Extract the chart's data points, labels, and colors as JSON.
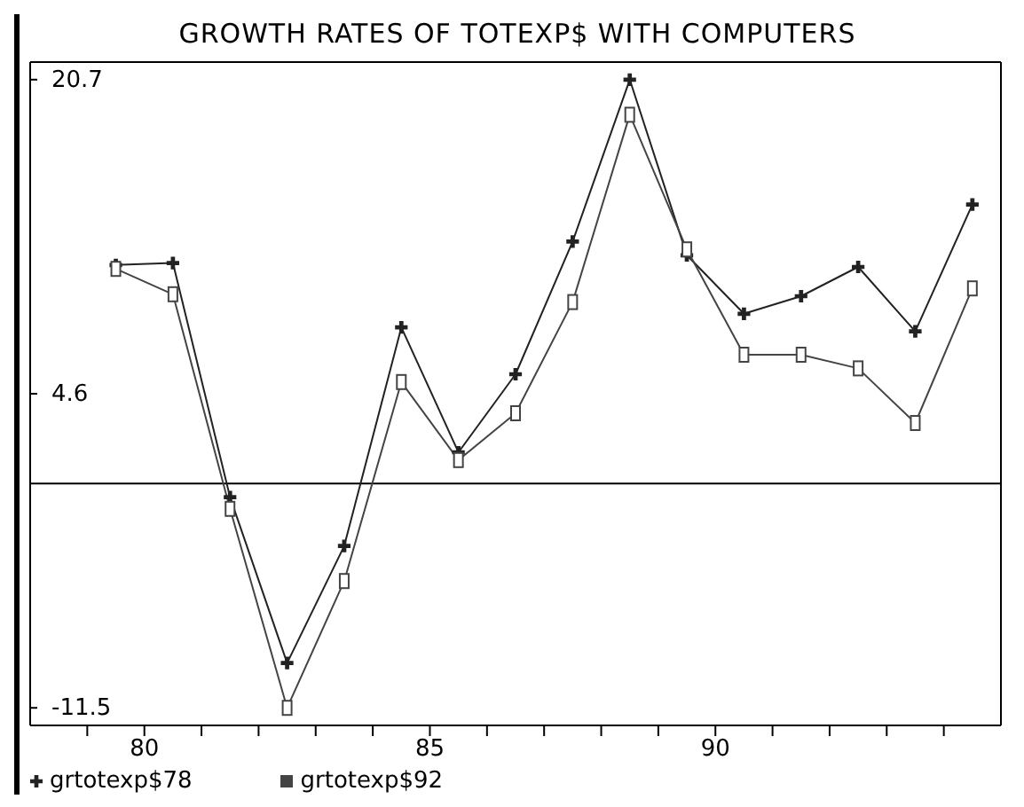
{
  "chart_data": {
    "type": "line",
    "title": "GROWTH RATES OF TOTEXP$ WITH COMPUTERS",
    "x": [
      79.5,
      80.5,
      81.5,
      82.5,
      83.5,
      84.5,
      85.5,
      86.5,
      87.5,
      88.5,
      89.5,
      90.5,
      91.5,
      92.5,
      93.5,
      94.5
    ],
    "series": [
      {
        "name": "grtotexp$78",
        "color": "#222222",
        "marker": "cross",
        "values": [
          11.2,
          11.3,
          -0.7,
          -9.2,
          -3.2,
          8.0,
          1.6,
          5.6,
          12.4,
          20.7,
          11.7,
          8.7,
          9.6,
          11.1,
          7.8,
          14.3
        ]
      },
      {
        "name": "grtotexp$92",
        "color": "#444444",
        "marker": "square",
        "values": [
          11.0,
          9.7,
          -1.3,
          -11.5,
          -5.0,
          5.2,
          1.2,
          3.6,
          9.3,
          18.9,
          12.0,
          6.6,
          6.6,
          5.9,
          3.1,
          10.0
        ]
      }
    ],
    "xlim": [
      78,
      95
    ],
    "xticks": [
      {
        "value": 79,
        "label": null
      },
      80,
      {
        "value": 81,
        "label": null
      },
      {
        "value": 82,
        "label": null
      },
      {
        "value": 83,
        "label": null
      },
      {
        "value": 84,
        "label": null
      },
      85,
      {
        "value": 86,
        "label": null
      },
      {
        "value": 87,
        "label": null
      },
      {
        "value": 88,
        "label": null
      },
      {
        "value": 89,
        "label": null
      },
      90,
      {
        "value": 91,
        "label": null
      },
      {
        "value": 92,
        "label": null
      },
      {
        "value": 93,
        "label": null
      },
      {
        "value": 94,
        "label": null
      }
    ],
    "ylim": [
      -12.4,
      21.6
    ],
    "yticks": [
      -11.5,
      4.6,
      20.7
    ],
    "ref_lines": [
      {
        "axis": "y",
        "value": 0,
        "color": "#000000"
      }
    ],
    "legend": "bottom left",
    "line_style": "solid",
    "grid": false
  }
}
